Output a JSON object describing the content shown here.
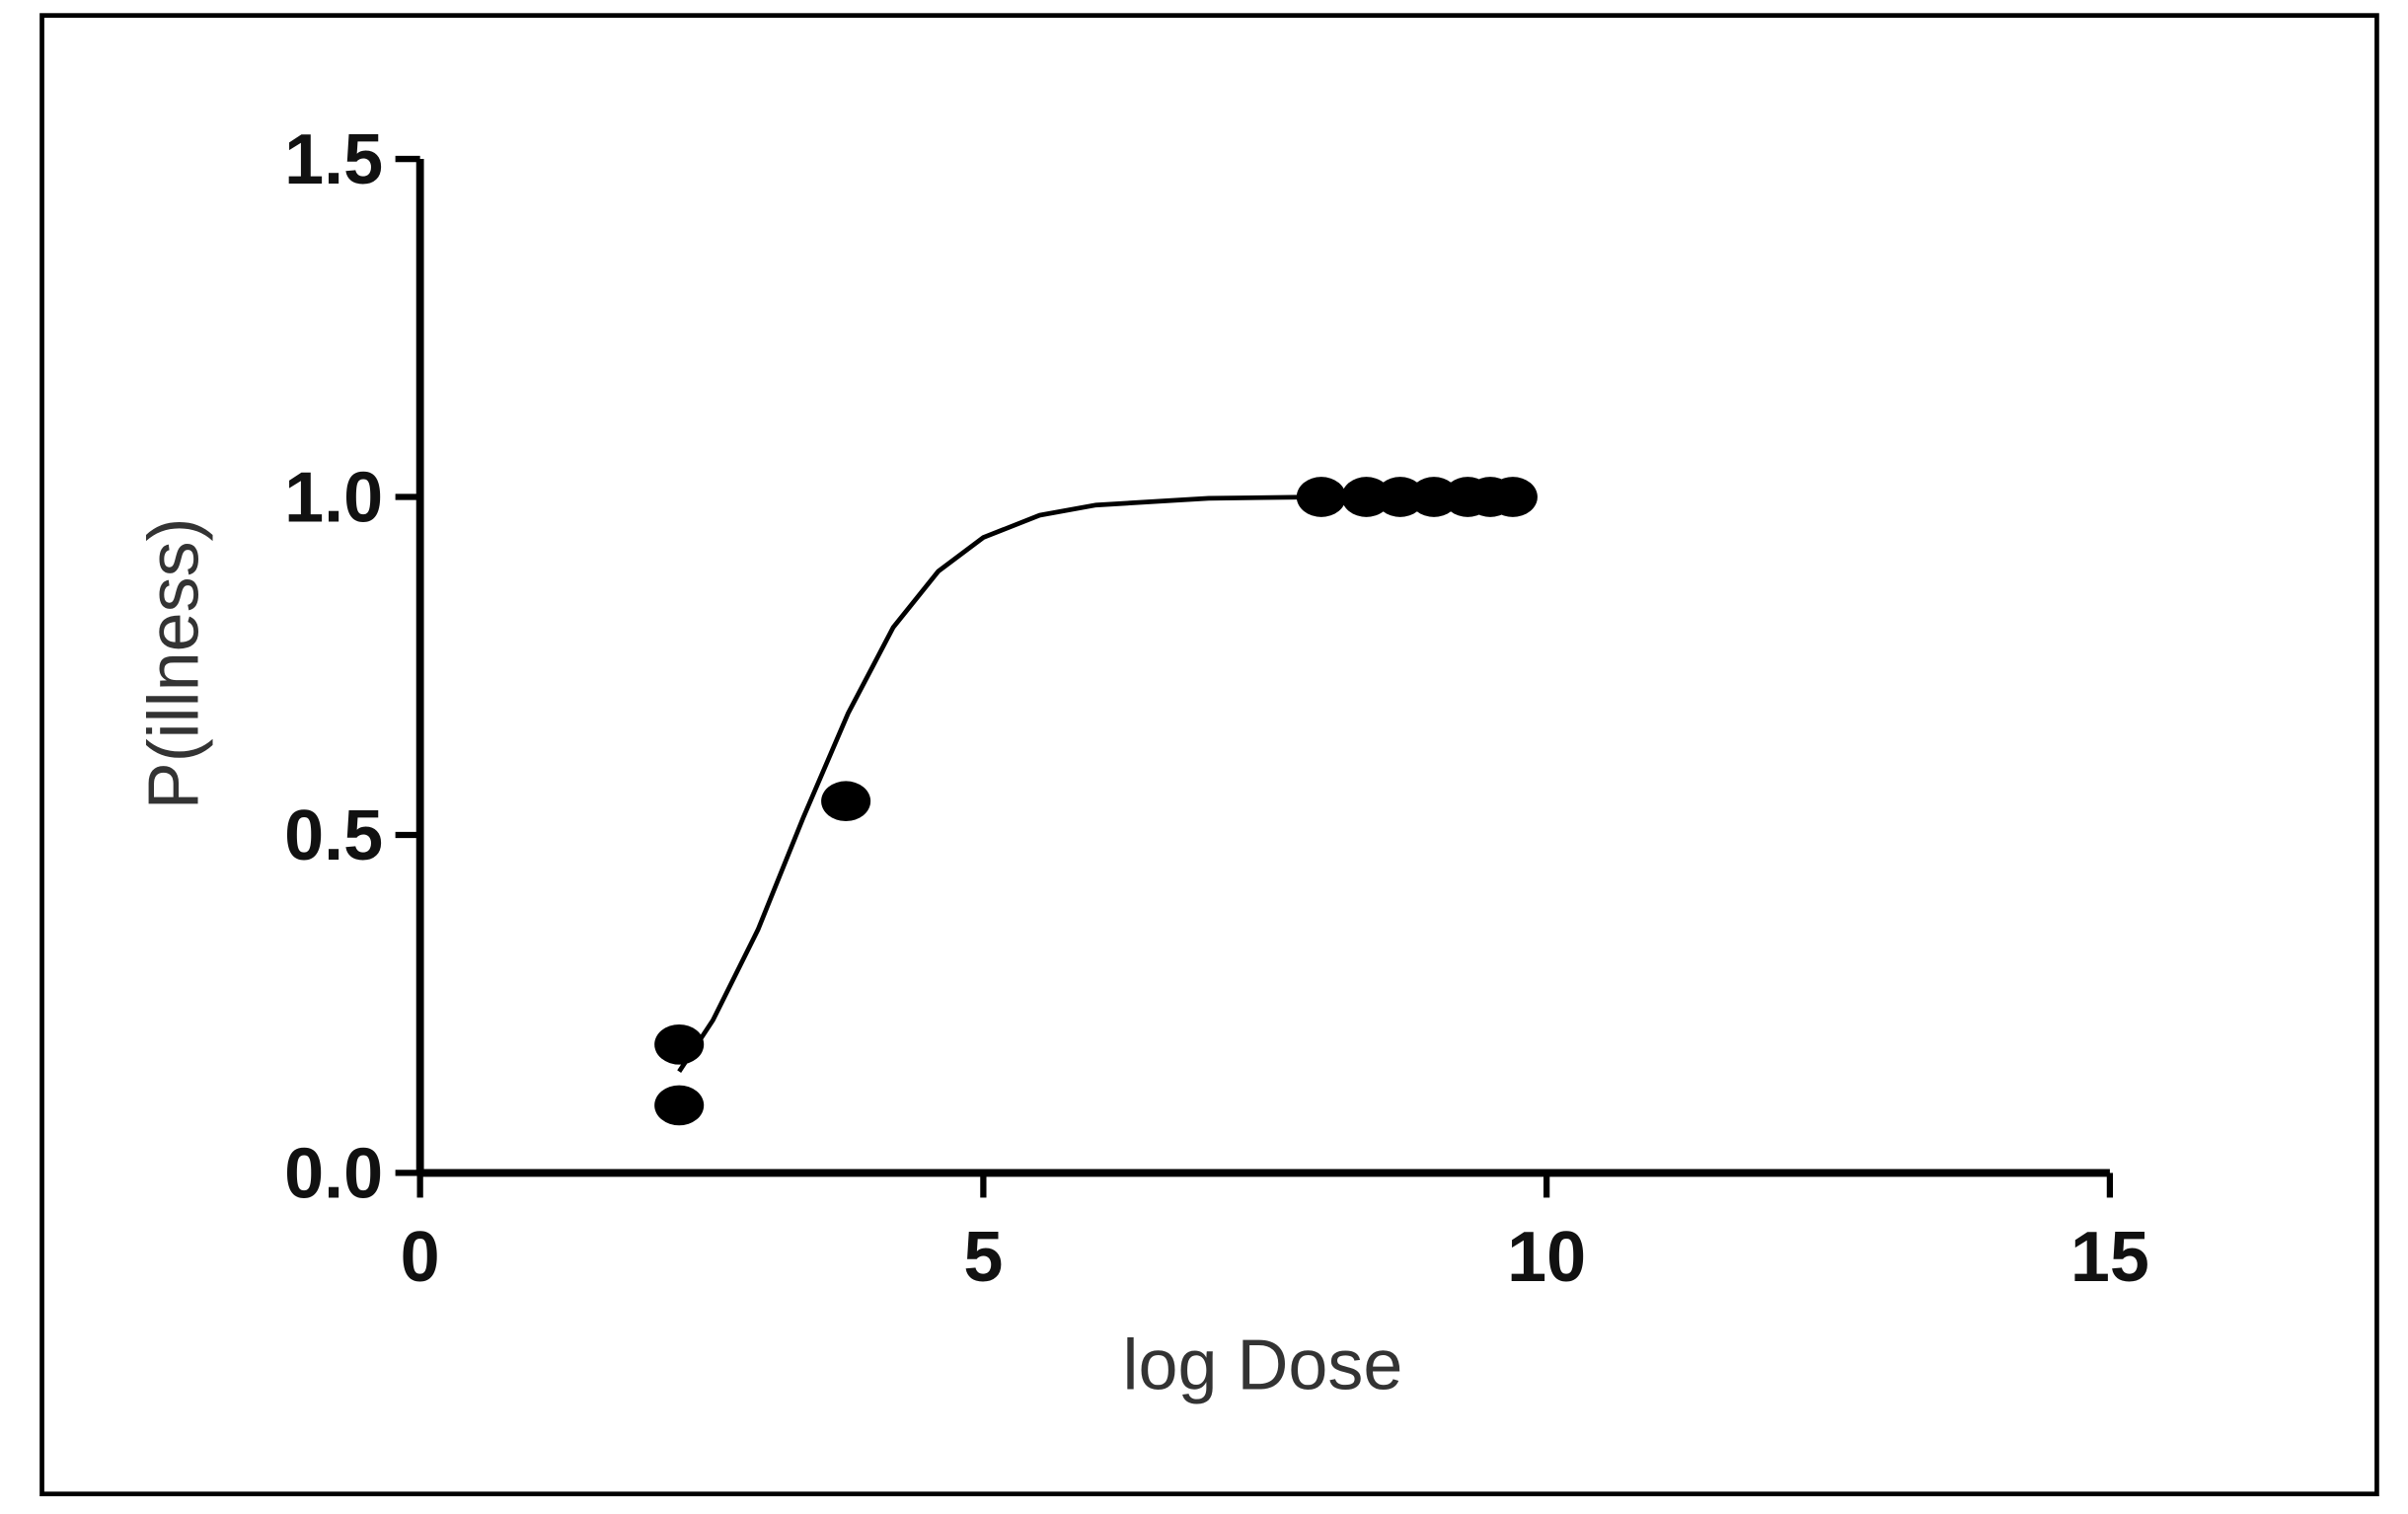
{
  "chart_data": {
    "type": "scatter",
    "xlabel": "log Dose",
    "ylabel": "P(illness)",
    "xlim": [
      0,
      15
    ],
    "xticks": [
      0,
      5,
      10,
      15
    ],
    "ylim": [
      0,
      1.5
    ],
    "yticks": [
      {
        "value": 0,
        "label": "0.0"
      },
      0.5,
      {
        "value": 1,
        "label": "1.0"
      },
      1.5
    ],
    "series": [
      {
        "style": "markers",
        "color": "#000000",
        "x": [
          2.3,
          2.3,
          3.78,
          8.0,
          8.4,
          8.7,
          9.0,
          9.3,
          9.5,
          9.7
        ],
        "values": [
          0.19,
          0.1,
          0.55,
          1.0,
          1.0,
          1.0,
          1.0,
          1.0,
          1.0,
          1.0
        ]
      },
      {
        "style": "line",
        "color": "#000000",
        "x": [
          2.3,
          2.6,
          3.0,
          3.4,
          3.8,
          4.2,
          4.6,
          5.0,
          5.5,
          6.0,
          7.0,
          8.0
        ],
        "values": [
          0.15,
          0.226,
          0.36,
          0.525,
          0.68,
          0.807,
          0.89,
          0.94,
          0.973,
          0.988,
          0.998,
          1.0
        ]
      }
    ]
  }
}
